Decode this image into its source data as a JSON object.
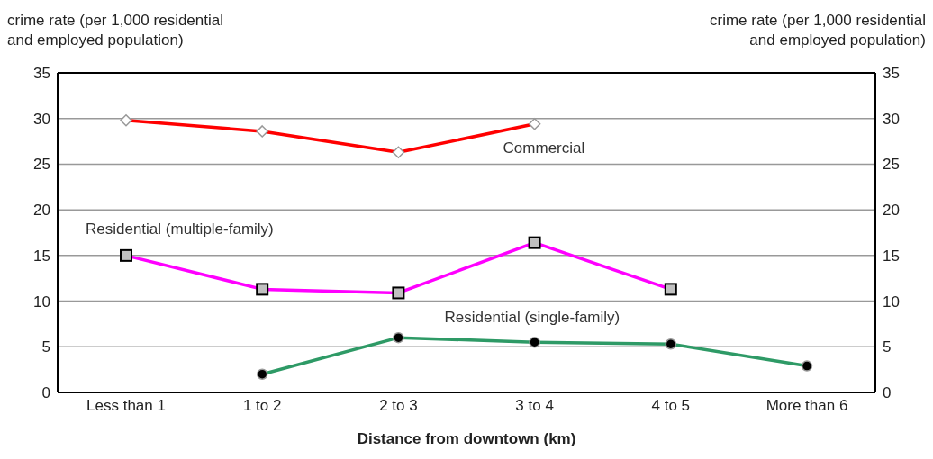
{
  "chart_data": {
    "type": "line",
    "xlabel": "Distance from downtown (km)",
    "ylabel": "crime rate (per 1,000 residential\nand employed population)",
    "y2label": "crime rate (per 1,000 residential\nand employed population)",
    "categories": [
      "Less than 1",
      "1 to 2",
      "2 to 3",
      "3 to 4",
      "4 to 5",
      "More than 6"
    ],
    "series": [
      {
        "name": "Commercial",
        "color": "#ff0000",
        "marker": "diamond",
        "values": [
          29.8,
          28.6,
          26.3,
          29.4,
          null,
          null
        ]
      },
      {
        "name": "Residential (multiple-family)",
        "color": "#ff00ff",
        "marker": "square",
        "values": [
          15.0,
          11.3,
          10.9,
          16.4,
          11.3,
          null
        ]
      },
      {
        "name": "Residential (single-family)",
        "color": "#2e9a66",
        "marker": "circle",
        "values": [
          null,
          2.0,
          6.0,
          5.5,
          5.3,
          2.9
        ]
      }
    ],
    "ylim": [
      0,
      35
    ],
    "yticks": [
      0,
      5,
      10,
      15,
      20,
      25,
      30,
      35
    ],
    "y2lim": [
      0,
      35
    ],
    "y2ticks": [
      0,
      5,
      10,
      15,
      20,
      25,
      30,
      35
    ],
    "grid": "y"
  }
}
